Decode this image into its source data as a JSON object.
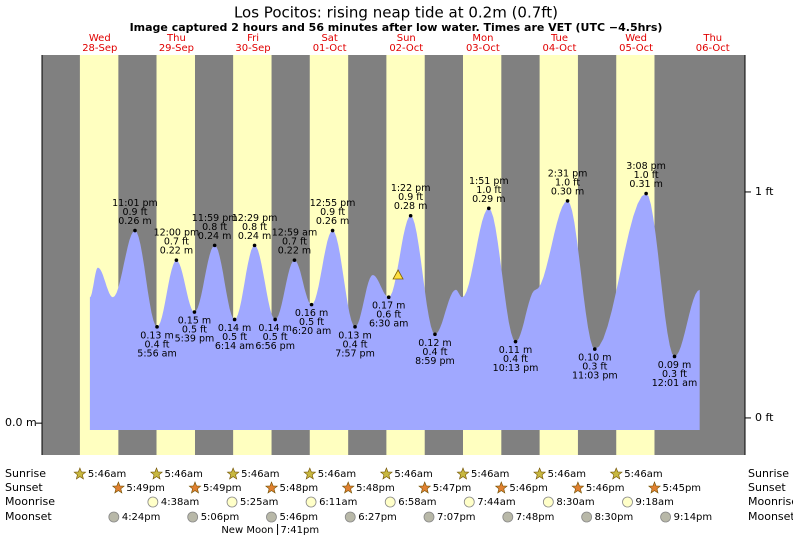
{
  "chart_data": {
    "type": "area",
    "title": "Los Pocitos: rising  neap tide at 0.2m (0.7ft)",
    "subtitle": "Image captured 2 hours and 56 minutes after low water. Times are VET (UTC −4.5hrs)",
    "categories": [
      "Wed",
      "Thu",
      "Fri",
      "Sat",
      "Sun",
      "Mon",
      "Tue",
      "Wed",
      "Thu"
    ],
    "dates": [
      "28-Sep",
      "29-Sep",
      "30-Sep",
      "01-Oct",
      "02-Oct",
      "03-Oct",
      "04-Oct",
      "05-Oct",
      "06-Oct"
    ],
    "xlim": [
      -6.1,
      214.1
    ],
    "ylim": [
      -0.043,
      0.497
    ],
    "yticks": [
      {
        "value": 0,
        "label": "0.0 m"
      }
    ],
    "y2lim": [
      -0.164,
      1.606
    ],
    "y2ticks": [
      {
        "value": 0,
        "label": "0 ft"
      },
      {
        "value": 1,
        "label": "1 ft"
      }
    ],
    "color": "#a0a8ff",
    "x": [
      8.9,
      11.4,
      16.1,
      23.02,
      29.93,
      36.0,
      41.65,
      47.98,
      54.23,
      60.48,
      66.93,
      72.98,
      78.33,
      84.92,
      91.95,
      97.5,
      102.5,
      109.37,
      116.98,
      123.5,
      125.5,
      133.85,
      142.22,
      148.5,
      158.52,
      167.05,
      183.13,
      192.02,
      199.9
    ],
    "series": [
      {
        "values": [
          0.17,
          0.21,
          0.17,
          0.26,
          0.13,
          0.22,
          0.15,
          0.24,
          0.14,
          0.24,
          0.14,
          0.22,
          0.16,
          0.26,
          0.13,
          0.2,
          0.17,
          0.28,
          0.12,
          0.18,
          0.17,
          0.29,
          0.11,
          0.18,
          0.3,
          0.1,
          0.31,
          0.09,
          0.18
        ],
        "value_labels": [
          null,
          null,
          null,
          "0.26 m",
          "0.13 m",
          "0.22 m",
          "0.15 m",
          "0.24 m",
          "0.14 m",
          "0.24 m",
          "0.14 m",
          "0.22 m",
          "0.16 m",
          "0.26 m",
          "0.13 m",
          null,
          "0.17 m",
          "0.28 m",
          "0.12 m",
          null,
          null,
          "0.29 m",
          "0.11 m",
          null,
          "0.30 m",
          "0.10 m",
          "0.31 m",
          "0.09 m",
          null
        ],
        "ft_labels": [
          null,
          null,
          null,
          "0.9 ft",
          "0.4 ft",
          "0.7 ft",
          "0.5 ft",
          "0.8 ft",
          "0.5 ft",
          "0.8 ft",
          "0.5 ft",
          "0.7 ft",
          "0.5 ft",
          "0.9 ft",
          "0.4 ft",
          null,
          "0.6 ft",
          "0.9 ft",
          "0.4 ft",
          null,
          null,
          "1.0 ft",
          "0.4 ft",
          null,
          "1.0 ft",
          "0.3 ft",
          "1.0 ft",
          "0.3 ft",
          null
        ],
        "time_labels": [
          null,
          null,
          null,
          "11:01 pm",
          "5:56 am",
          "12:00 pm",
          "5:39 pm",
          "11:59 pm",
          "6:14 am",
          "12:29 pm",
          "6:56 pm",
          "12:59 am",
          "6:20 am",
          "12:55 pm",
          "7:57 pm",
          null,
          "6:30 am",
          "1:22 pm",
          "8:59 pm",
          null,
          null,
          "1:51 pm",
          "10:13 pm",
          null,
          "2:31 pm",
          "11:03 pm",
          "3:08 pm",
          "12:01 am",
          null
        ]
      }
    ],
    "current": {
      "x": 105.43,
      "value": 0.2
    },
    "sunrise": {
      "label": "Sunrise",
      "times": [
        "5:46am",
        "5:46am",
        "5:46am",
        "5:46am",
        "5:46am",
        "5:46am",
        "5:46am",
        "5:46am"
      ],
      "x": [
        5.77,
        29.77,
        53.77,
        77.77,
        101.77,
        125.77,
        149.77,
        173.77
      ]
    },
    "sunset": {
      "label": "Sunset",
      "times": [
        "5:49pm",
        "5:49pm",
        "5:48pm",
        "5:48pm",
        "5:47pm",
        "5:46pm",
        "5:46pm",
        "5:45pm"
      ],
      "x": [
        17.82,
        41.82,
        65.8,
        89.8,
        113.78,
        137.77,
        161.77,
        185.75
      ]
    },
    "moonrise": {
      "label": "Moonrise",
      "times": [
        "4:38am",
        "5:25am",
        "6:11am",
        "6:58am",
        "7:44am",
        "8:30am",
        "9:18am"
      ],
      "x": [
        28.63,
        53.42,
        78.18,
        102.97,
        127.73,
        152.5,
        177.3
      ]
    },
    "moonset": {
      "label": "Moonset",
      "times": [
        "4:24pm",
        "5:06pm",
        "5:46pm",
        "6:27pm",
        "7:07pm",
        "7:48pm",
        "8:30pm",
        "9:14pm"
      ],
      "x": [
        16.4,
        41.1,
        65.77,
        90.45,
        115.12,
        139.8,
        164.5,
        189.23
      ]
    },
    "moon_phase": {
      "label": "New Moon",
      "time": "7:41pm",
      "x": 67.68
    }
  }
}
